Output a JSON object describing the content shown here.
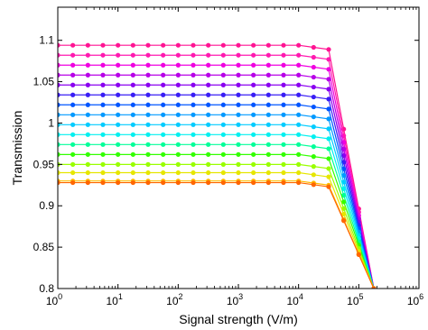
{
  "chart_data": {
    "type": "line",
    "xlabel": "Signal strength (V/m)",
    "ylabel": "Transmission",
    "x_scale": "log",
    "xlim": [
      1,
      1000000
    ],
    "ylim": [
      0.8,
      1.14
    ],
    "grid": false,
    "x_tick_labels": [
      "10^0",
      "10^1",
      "10^2",
      "10^3",
      "10^4",
      "10^5",
      "10^6"
    ],
    "y_ticks": [
      0.8,
      0.85,
      0.9,
      0.95,
      1,
      1.05,
      1.1
    ],
    "y_tick_labels": [
      "0.8",
      "0.85",
      "0.9",
      "0.95",
      "1",
      "1.05",
      "1.1"
    ],
    "x": [
      1,
      1.778,
      3.162,
      5.623,
      10,
      17.78,
      31.62,
      56.23,
      100,
      177.8,
      316.2,
      562.3,
      1000,
      1778,
      3162,
      5623,
      10000,
      17780,
      31620,
      56230,
      100000,
      177800
    ],
    "knee_x": 10000,
    "drop_start_x": 31620,
    "series": [
      {
        "color": "#ff1493",
        "plateau": 1.094,
        "knee": 1.089,
        "end_y": 0.8
      },
      {
        "color": "#ff1ab0",
        "plateau": 1.082,
        "knee": 1.077,
        "end_y": 0.8
      },
      {
        "color": "#f000e0",
        "plateau": 1.07,
        "knee": 1.065,
        "end_y": 0.8
      },
      {
        "color": "#b800e8",
        "plateau": 1.058,
        "knee": 1.053,
        "end_y": 0.8
      },
      {
        "color": "#8a00f0",
        "plateau": 1.046,
        "knee": 1.041,
        "end_y": 0.8
      },
      {
        "color": "#3a1ef5",
        "plateau": 1.034,
        "knee": 1.029,
        "end_y": 0.8
      },
      {
        "color": "#0055ff",
        "plateau": 1.022,
        "knee": 1.017,
        "end_y": 0.8
      },
      {
        "color": "#0099ff",
        "plateau": 1.01,
        "knee": 1.005,
        "end_y": 0.8
      },
      {
        "color": "#00ccff",
        "plateau": 0.998,
        "knee": 0.993,
        "end_y": 0.8
      },
      {
        "color": "#00f0f0",
        "plateau": 0.986,
        "knee": 0.981,
        "end_y": 0.8
      },
      {
        "color": "#00ff99",
        "plateau": 0.974,
        "knee": 0.969,
        "end_y": 0.8
      },
      {
        "color": "#33ff00",
        "plateau": 0.962,
        "knee": 0.957,
        "end_y": 0.8
      },
      {
        "color": "#99ff00",
        "plateau": 0.95,
        "knee": 0.945,
        "end_y": 0.8
      },
      {
        "color": "#e6e600",
        "plateau": 0.94,
        "knee": 0.935,
        "end_y": 0.8
      },
      {
        "color": "#ffbb00",
        "plateau": 0.93,
        "knee": 0.925,
        "end_y": 0.8
      },
      {
        "color": "#ff6600",
        "plateau": 0.928,
        "knee": 0.923,
        "end_y": 0.8
      }
    ]
  }
}
